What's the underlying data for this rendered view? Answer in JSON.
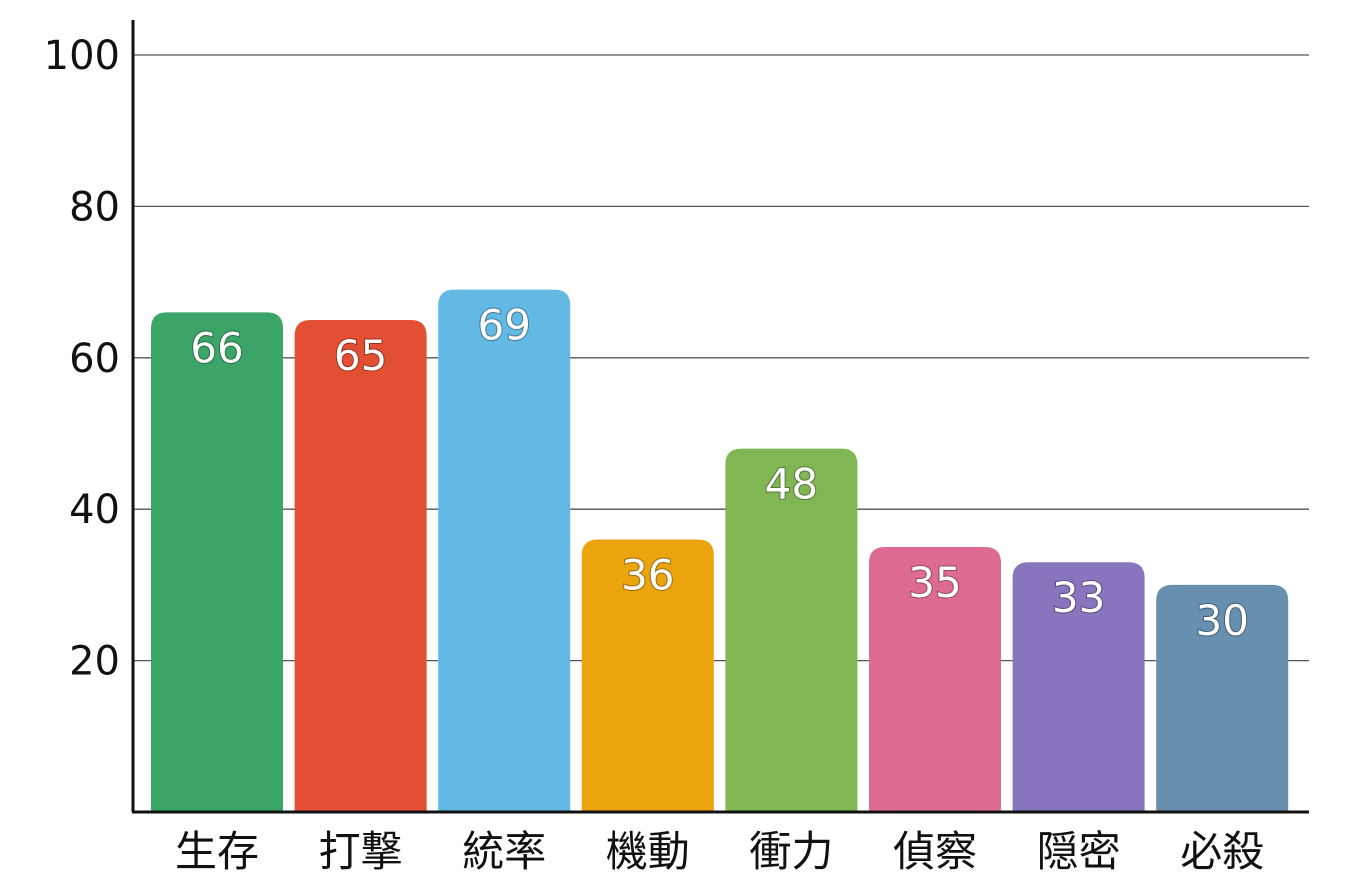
{
  "chart_data": {
    "type": "bar",
    "categories": [
      "生存",
      "打撃",
      "統率",
      "機動",
      "衝力",
      "偵察",
      "隠密",
      "必殺"
    ],
    "values": [
      66,
      65,
      69,
      36,
      48,
      35,
      33,
      30
    ],
    "colors": [
      "#3aa567",
      "#e34f32",
      "#62b9e4",
      "#eba30e",
      "#80b653",
      "#de6c92",
      "#8974be",
      "#6790b0"
    ],
    "title": "",
    "xlabel": "",
    "ylabel": "",
    "ylim": [
      0,
      100
    ],
    "yticks": [
      20,
      40,
      60,
      80,
      100
    ],
    "grid": true,
    "data_labels": true
  }
}
